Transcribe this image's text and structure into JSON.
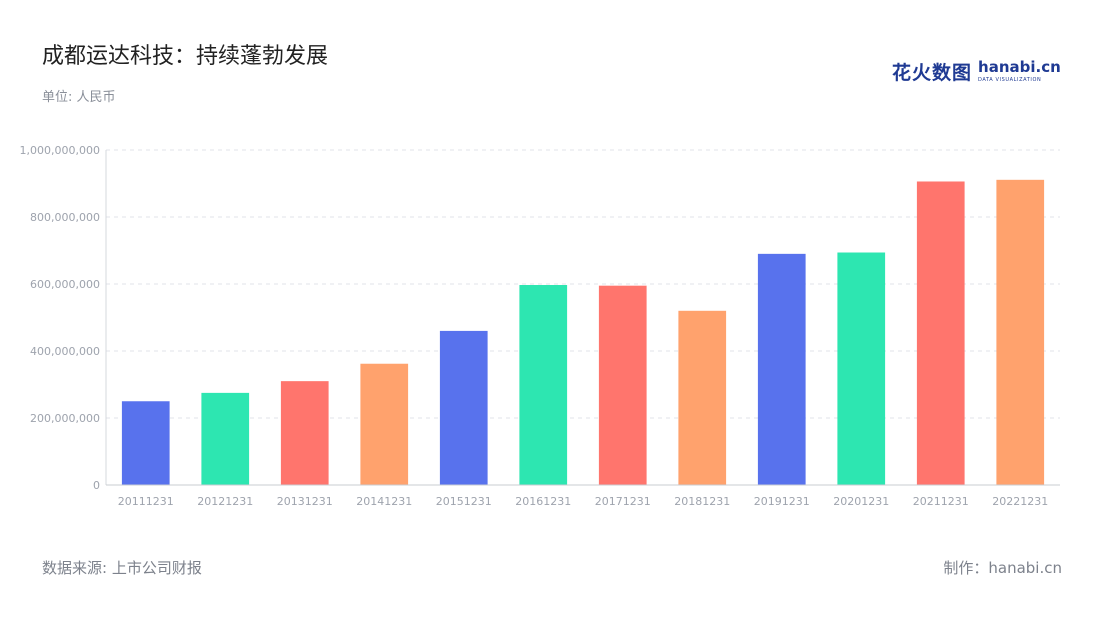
{
  "title": "成都运达科技：持续蓬勃发展",
  "unit": "单位: 人民币",
  "logo": {
    "cn": "花火数图",
    "en": "hanabi.cn",
    "en_sub": "DATA VISUALIZATION"
  },
  "source": "数据来源: 上市公司财报",
  "credit": "制作：hanabi.cn",
  "chart_data": {
    "type": "bar",
    "categories": [
      "20111231",
      "20121231",
      "20131231",
      "20141231",
      "20151231",
      "20161231",
      "20171231",
      "20181231",
      "20191231",
      "20201231",
      "20211231",
      "20221231"
    ],
    "values": [
      250000000,
      275000000,
      310000000,
      362000000,
      460000000,
      597000000,
      595000000,
      520000000,
      690000000,
      694000000,
      906000000,
      911000000
    ],
    "colors": [
      "#5872ed",
      "#2de6b1",
      "#ff756d",
      "#ffa26d",
      "#5872ed",
      "#2de6b1",
      "#ff756d",
      "#ffa26d",
      "#5872ed",
      "#2de6b1",
      "#ff756d",
      "#ffa26d"
    ],
    "ylim": [
      0,
      1000000000
    ],
    "yticks": [
      0,
      200000000,
      400000000,
      600000000,
      800000000,
      1000000000
    ],
    "ytick_labels": [
      "0",
      "200,000,000",
      "400,000,000",
      "600,000,000",
      "800,000,000",
      "1,000,000,000"
    ],
    "grid": true,
    "legend": "none"
  }
}
